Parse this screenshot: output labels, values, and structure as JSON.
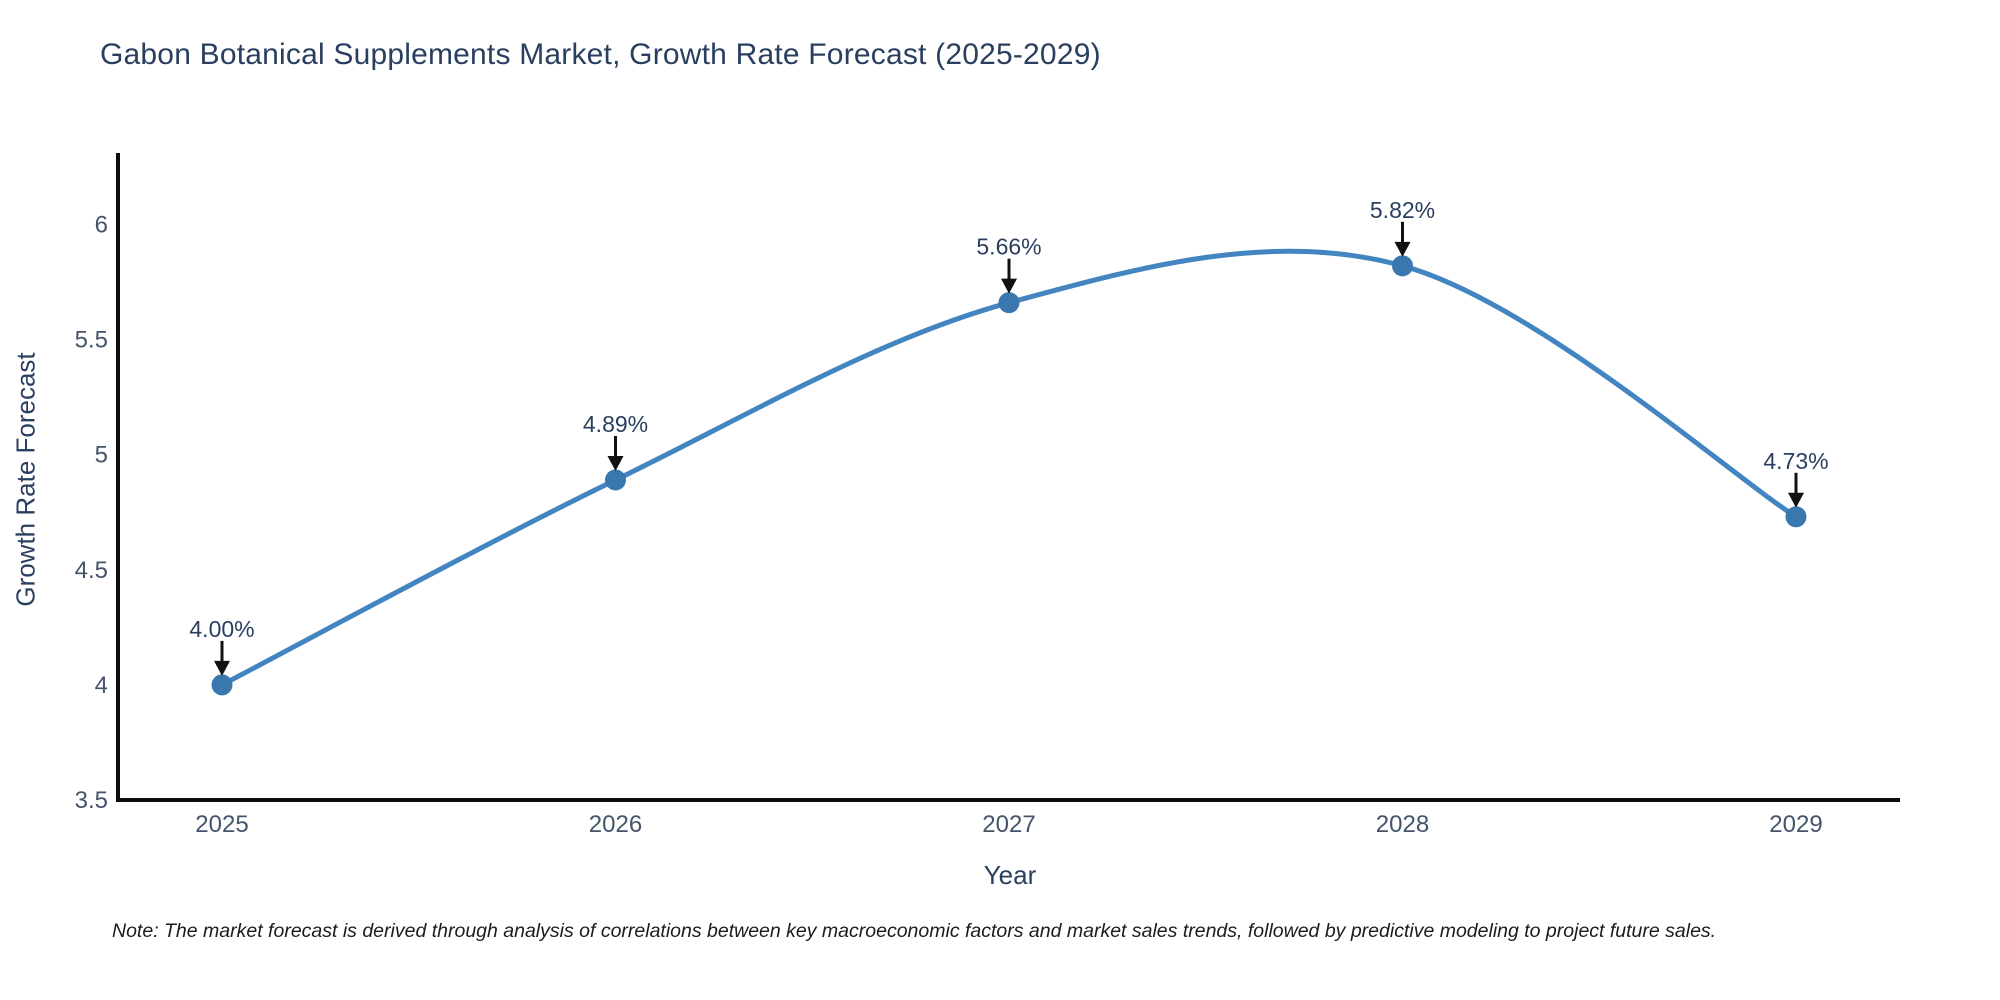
{
  "chart_data": {
    "type": "line",
    "title": "Gabon Botanical Supplements Market, Growth Rate Forecast (2025-2029)",
    "xlabel": "Year",
    "ylabel": "Growth Rate Forecast",
    "x": [
      2025,
      2026,
      2027,
      2028,
      2029
    ],
    "values": [
      4.0,
      4.89,
      5.66,
      5.82,
      4.73
    ],
    "point_labels": [
      "4.00%",
      "4.89%",
      "5.66%",
      "5.82%",
      "4.73%"
    ],
    "ylim": [
      3.5,
      6.31
    ],
    "yticks": [
      3.5,
      4,
      4.5,
      5,
      5.5,
      6
    ],
    "ytick_labels": [
      "3.5",
      "4",
      "4.5",
      "5",
      "5.5",
      "6"
    ],
    "xtick_labels": [
      "2025",
      "2026",
      "2027",
      "2028",
      "2029"
    ],
    "grid": false,
    "legend": "none",
    "line_shape": "spline",
    "colors": {
      "line": "#4285c0",
      "marker": "#3a77ae",
      "axis": "#0d0d0d",
      "arrow": "#111111",
      "text": "#2a3f5f",
      "tick_text": "#44546a",
      "background": "#ffffff"
    }
  },
  "footnote": "Note: The market forecast is derived through analysis of correlations between key macroeconomic factors and market sales trends, followed by predictive modeling to project future sales."
}
